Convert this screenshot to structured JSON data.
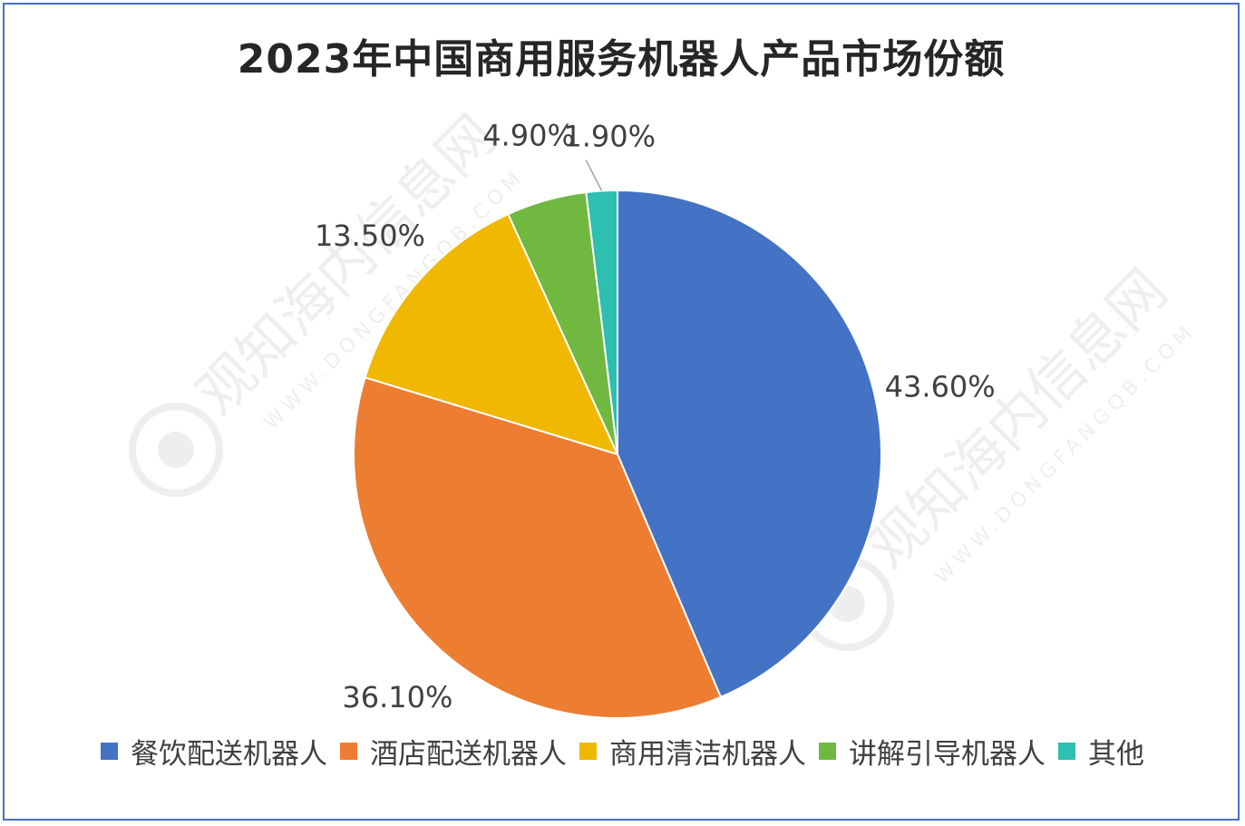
{
  "chart_data": {
    "type": "pie",
    "title": "2023年中国商用服务机器人产品市场份额",
    "slices": [
      {
        "label": "餐饮配送机器人",
        "value": 43.6,
        "display": "43.60%",
        "color": "#4472C4"
      },
      {
        "label": "酒店配送机器人",
        "value": 36.1,
        "display": "36.10%",
        "color": "#ED7D31"
      },
      {
        "label": "商用清洁机器人",
        "value": 13.5,
        "display": "13.50%",
        "color": "#F0B800"
      },
      {
        "label": "讲解引导机器人",
        "value": 4.9,
        "display": "4.90%",
        "color": "#70B83F"
      },
      {
        "label": "其他",
        "value": 1.9,
        "display": "1.90%",
        "color": "#2DBFB0"
      }
    ],
    "start_angle": "12 o'clock",
    "direction": "clockwise",
    "legend_position": "bottom"
  },
  "watermark": {
    "name": "观知海内信息网",
    "url": "WWW.DONGFANGQB.COM"
  }
}
